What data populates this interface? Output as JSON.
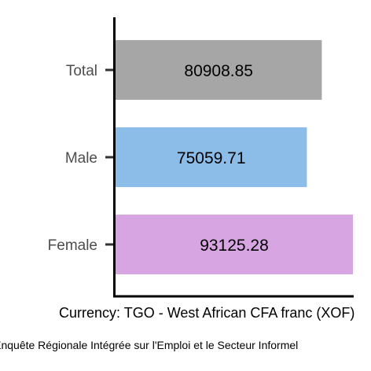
{
  "chart_data": {
    "type": "bar",
    "orientation": "horizontal",
    "categories": [
      "Total",
      "Male",
      "Female"
    ],
    "values": [
      80908.85,
      75059.71,
      93125.28
    ],
    "data_labels": [
      "80908.85",
      "75059.71",
      "93125.28"
    ],
    "colors": [
      "#a6a6a6",
      "#8cbde8",
      "#d7a6e2"
    ],
    "xlabel": "Currency: TGO - West African CFA franc (XOF)",
    "caption": "Source: Enquête Régionale Intégrée sur l'Emploi et le Secteur Informel",
    "xlim": [
      0,
      93125.28
    ],
    "grid": false
  }
}
